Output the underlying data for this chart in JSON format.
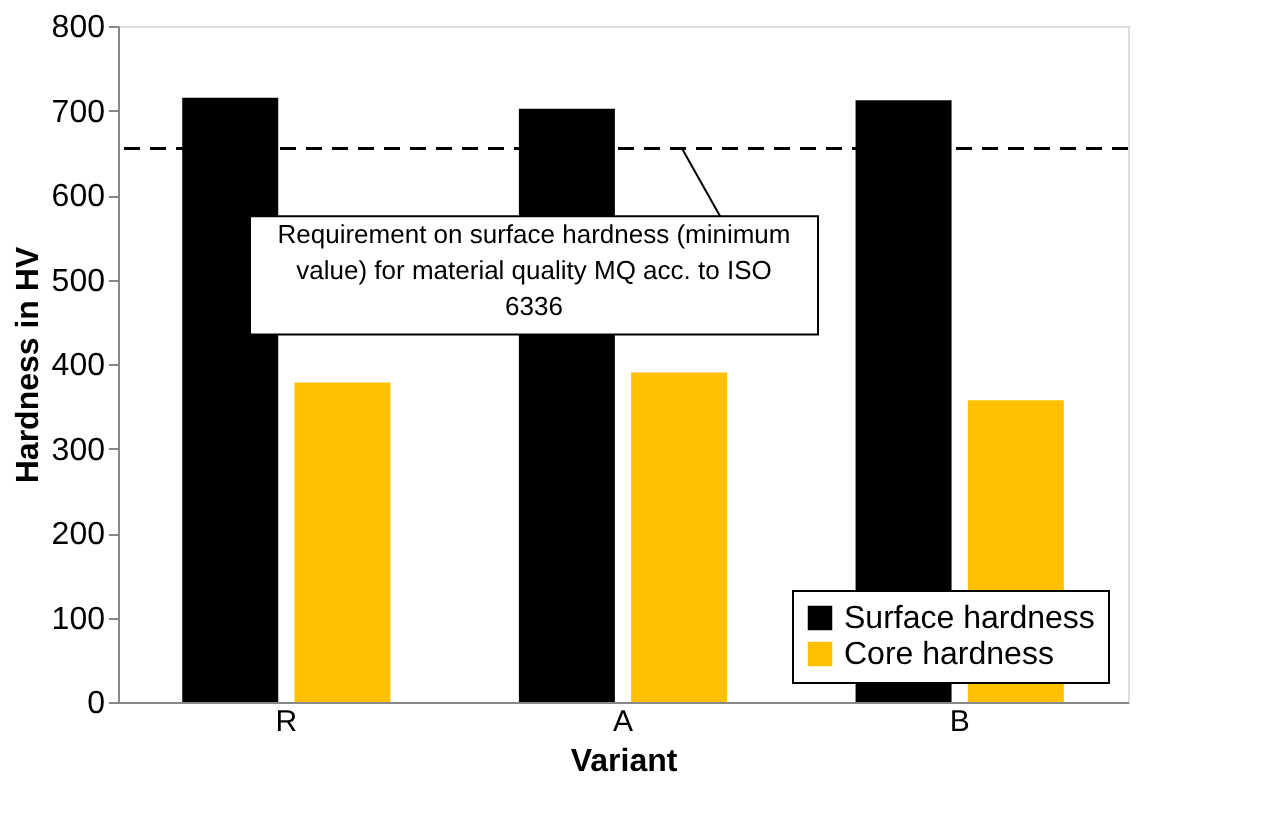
{
  "chart_data": {
    "type": "bar",
    "xlabel": "Variant",
    "ylabel": "Hardness in HV",
    "categories": [
      "R",
      "A",
      "B"
    ],
    "series": [
      {
        "name": "Surface hardness",
        "color": "#000000",
        "values": [
          715,
          702,
          712
        ]
      },
      {
        "name": "Core hardness",
        "color": "#ffc000",
        "values": [
          378,
          390,
          357
        ]
      }
    ],
    "ylim": [
      0,
      800
    ],
    "yticks": [
      0,
      100,
      200,
      300,
      400,
      500,
      600,
      700,
      800
    ],
    "grid": false,
    "legend": "bottom right",
    "ref_lines": [
      {
        "axis": "y",
        "value": 655,
        "label": "Requirement on surface hardness (minimum value) for material quality MQ acc. to ISO 6336",
        "color": "#000000",
        "line_style": "dashed"
      }
    ]
  }
}
